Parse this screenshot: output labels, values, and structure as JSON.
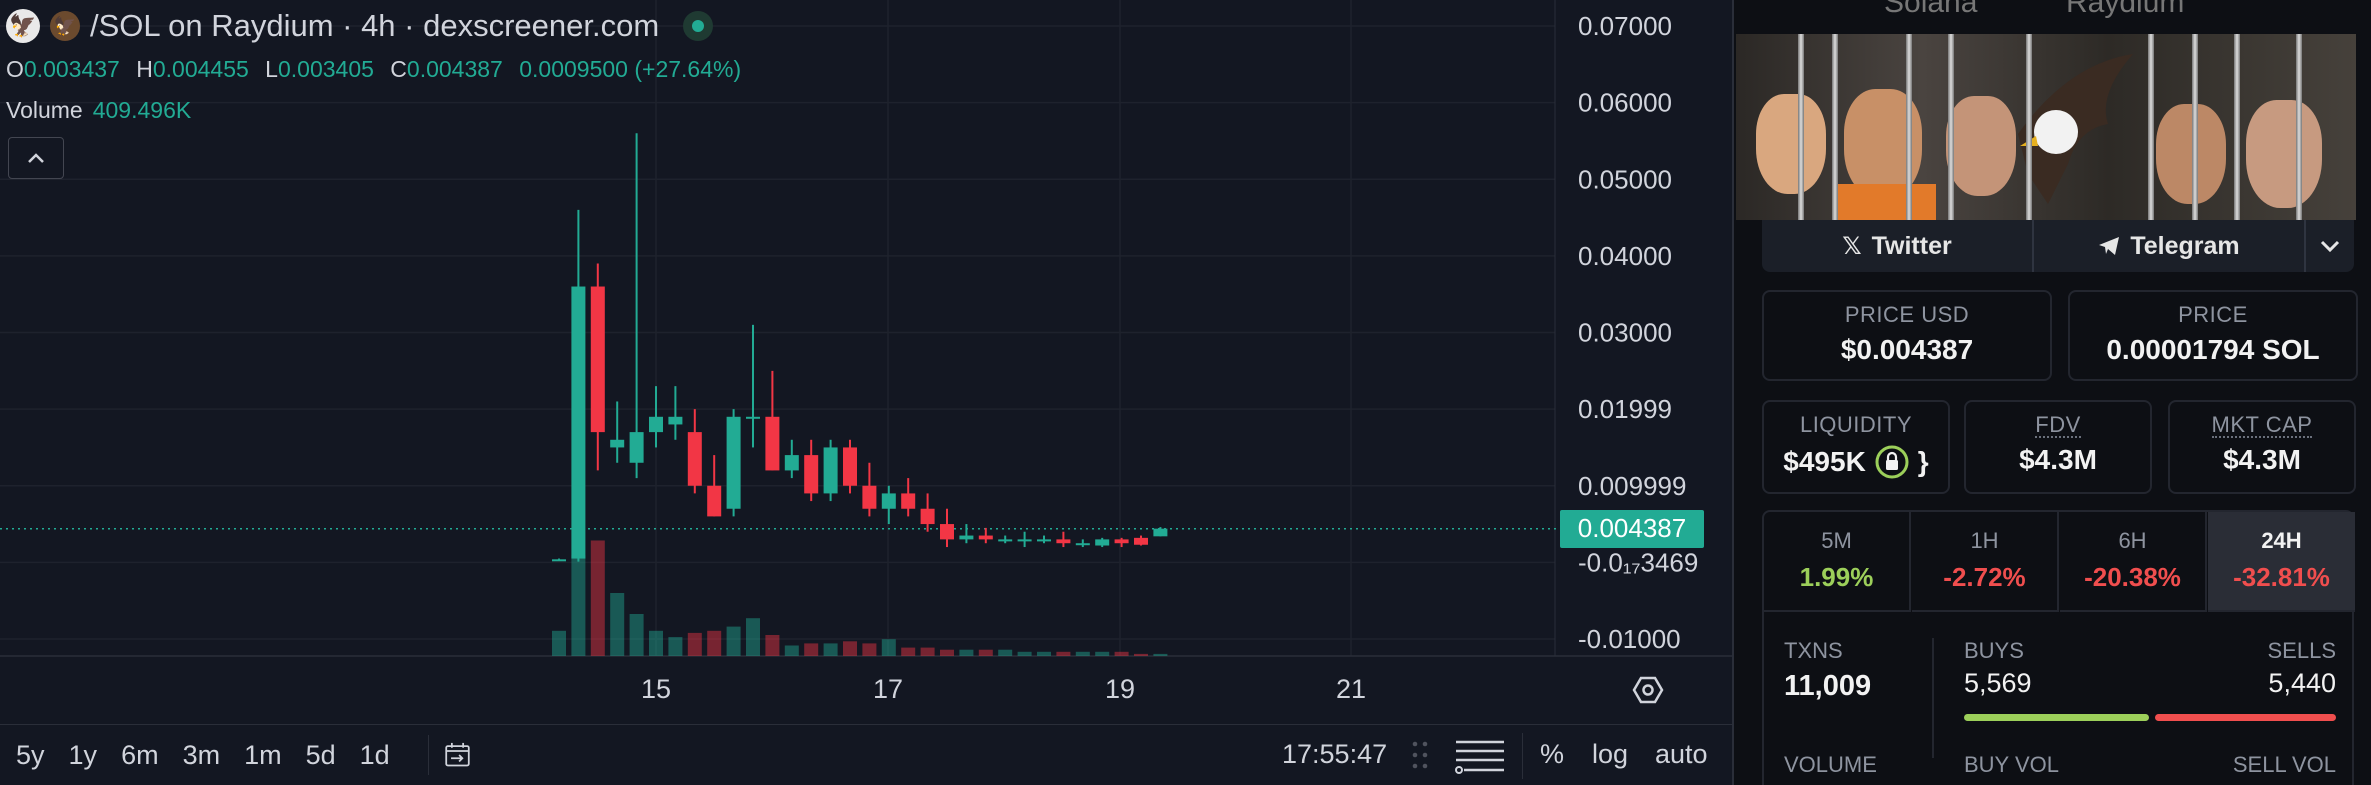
{
  "header": {
    "title": "/SOL on Raydium · 4h · dexscreener.com",
    "ohlc": [
      {
        "key": "O",
        "value": "0.003437"
      },
      {
        "key": "H",
        "value": "0.004455"
      },
      {
        "key": "L",
        "value": "0.003405"
      },
      {
        "key": "C",
        "value": "0.004387"
      }
    ],
    "change": "0.0009500 (+27.64%)",
    "volume_label": "Volume",
    "volume_value": "409.496K"
  },
  "price_axis": [
    "0.07000",
    "0.06000",
    "0.05000",
    "0.04000",
    "0.03000",
    "0.01999",
    "0.009999",
    "-0.0₁₇3469",
    "-0.01000"
  ],
  "current_price_tag": "0.004387",
  "time_axis": [
    "15",
    "17",
    "19",
    "21"
  ],
  "toolbar": {
    "timeframes": [
      "5y",
      "1y",
      "6m",
      "3m",
      "1m",
      "5d",
      "1d"
    ],
    "clock": "17:55:47",
    "percent": "%",
    "log": "log",
    "auto": "auto"
  },
  "colors": {
    "up": "#22ab94",
    "down": "#f23645",
    "background": "#131722",
    "panel": "#0d0f14"
  },
  "chart_data": {
    "type": "candlestick",
    "timeframe": "4h",
    "x_ticks": [
      "15",
      "17",
      "19",
      "21"
    ],
    "ylim": [
      -0.01,
      0.07
    ],
    "candles": [
      {
        "o": 0.0003,
        "h": 0.0005,
        "l": 0.0002,
        "c": 0.0004
      },
      {
        "o": 0.0005,
        "h": 0.046,
        "l": 0.0001,
        "c": 0.036
      },
      {
        "o": 0.036,
        "h": 0.039,
        "l": 0.012,
        "c": 0.017
      },
      {
        "o": 0.015,
        "h": 0.021,
        "l": 0.013,
        "c": 0.016
      },
      {
        "o": 0.013,
        "h": 0.056,
        "l": 0.011,
        "c": 0.017
      },
      {
        "o": 0.017,
        "h": 0.023,
        "l": 0.015,
        "c": 0.019
      },
      {
        "o": 0.018,
        "h": 0.023,
        "l": 0.016,
        "c": 0.019
      },
      {
        "o": 0.017,
        "h": 0.02,
        "l": 0.009,
        "c": 0.01
      },
      {
        "o": 0.01,
        "h": 0.014,
        "l": 0.006,
        "c": 0.006
      },
      {
        "o": 0.007,
        "h": 0.02,
        "l": 0.006,
        "c": 0.019
      },
      {
        "o": 0.019,
        "h": 0.031,
        "l": 0.015,
        "c": 0.019
      },
      {
        "o": 0.019,
        "h": 0.025,
        "l": 0.012,
        "c": 0.012
      },
      {
        "o": 0.012,
        "h": 0.016,
        "l": 0.011,
        "c": 0.014
      },
      {
        "o": 0.014,
        "h": 0.016,
        "l": 0.008,
        "c": 0.009
      },
      {
        "o": 0.009,
        "h": 0.016,
        "l": 0.008,
        "c": 0.015
      },
      {
        "o": 0.015,
        "h": 0.016,
        "l": 0.009,
        "c": 0.01
      },
      {
        "o": 0.01,
        "h": 0.013,
        "l": 0.006,
        "c": 0.007
      },
      {
        "o": 0.007,
        "h": 0.01,
        "l": 0.005,
        "c": 0.009
      },
      {
        "o": 0.009,
        "h": 0.011,
        "l": 0.006,
        "c": 0.007
      },
      {
        "o": 0.007,
        "h": 0.009,
        "l": 0.004,
        "c": 0.005
      },
      {
        "o": 0.005,
        "h": 0.007,
        "l": 0.002,
        "c": 0.003
      },
      {
        "o": 0.003,
        "h": 0.005,
        "l": 0.0025,
        "c": 0.0035
      },
      {
        "o": 0.0035,
        "h": 0.0045,
        "l": 0.0025,
        "c": 0.003
      },
      {
        "o": 0.003,
        "h": 0.0035,
        "l": 0.0025,
        "c": 0.003
      },
      {
        "o": 0.003,
        "h": 0.004,
        "l": 0.002,
        "c": 0.003
      },
      {
        "o": 0.003,
        "h": 0.0035,
        "l": 0.0025,
        "c": 0.003
      },
      {
        "o": 0.003,
        "h": 0.004,
        "l": 0.002,
        "c": 0.0025
      },
      {
        "o": 0.0025,
        "h": 0.003,
        "l": 0.002,
        "c": 0.0025
      },
      {
        "o": 0.0022,
        "h": 0.0032,
        "l": 0.002,
        "c": 0.003
      },
      {
        "o": 0.003,
        "h": 0.0032,
        "l": 0.002,
        "c": 0.0025
      },
      {
        "o": 0.0032,
        "h": 0.0035,
        "l": 0.0022,
        "c": 0.0023
      },
      {
        "o": 0.0034,
        "h": 0.0046,
        "l": 0.0034,
        "c": 0.0044
      }
    ],
    "volumes": [
      12,
      48,
      55,
      30,
      20,
      12,
      9,
      11,
      12,
      14,
      18,
      10,
      5,
      6,
      6,
      7,
      6,
      8,
      4,
      4,
      3,
      3,
      3,
      3,
      2,
      2,
      2,
      2,
      2,
      2,
      1,
      1
    ]
  },
  "side": {
    "top_text": [
      "Solana",
      "Raydium"
    ],
    "twitter_label": "Twitter",
    "telegram_label": "Telegram",
    "price_usd_label": "PRICE USD",
    "price_usd": "$0.004387",
    "price_label": "PRICE",
    "price_sol": "0.00001794 SOL",
    "liquidity_label": "LIQUIDITY",
    "liquidity": "$495K",
    "fdv_label": "FDV",
    "fdv": "$4.3M",
    "mktcap_label": "MKT CAP",
    "mktcap": "$4.3M",
    "tabs": [
      {
        "label": "5M",
        "value": "1.99%",
        "color": "#9ccf5a"
      },
      {
        "label": "1H",
        "value": "-2.72%",
        "color": "#f04e4e"
      },
      {
        "label": "6H",
        "value": "-20.38%",
        "color": "#f04e4e"
      },
      {
        "label": "24H",
        "value": "-32.81%",
        "color": "#f04e4e"
      }
    ],
    "txns_label": "TXNS",
    "txns": "11,009",
    "buys_label": "BUYS",
    "buys": "5,569",
    "sells_label": "SELLS",
    "sells": "5,440",
    "buy_share": 0.506,
    "volume_label": "VOLUME",
    "buy_vol_label": "BUY VOL",
    "sell_vol_label": "SELL VOL"
  }
}
